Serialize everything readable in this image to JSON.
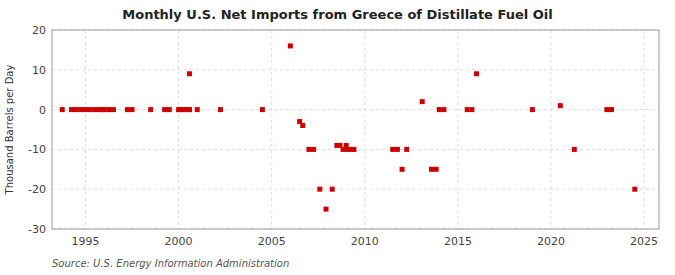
{
  "chart_data": {
    "type": "scatter",
    "title": "Monthly U.S. Net Imports from Greece of Distillate Fuel Oil",
    "y_label": "Thousand Barrels per Day",
    "source": "Source: U.S. Energy Information Administration",
    "color": "#cc0000",
    "marker": "square",
    "grid": true,
    "xlim": [
      1993.2,
      2025.8
    ],
    "ylim": [
      -30,
      20
    ],
    "xticks": [
      1995,
      2000,
      2005,
      2010,
      2015,
      2020,
      2025
    ],
    "yticks": [
      -30,
      -20,
      -10,
      0,
      10,
      20
    ],
    "x": [
      1993.75,
      1994.25,
      1994.5,
      1994.75,
      1995.0,
      1995.25,
      1995.5,
      1995.75,
      1995.917,
      1996.0,
      1996.25,
      1996.5,
      1997.25,
      1997.5,
      1998.5,
      1999.25,
      1999.5,
      2000.0,
      2000.083,
      2000.25,
      2000.417,
      2000.583,
      2000.583,
      2001.0,
      2002.25,
      2004.5,
      2006.0,
      2006.5,
      2006.667,
      2007.0,
      2007.25,
      2007.583,
      2007.917,
      2008.25,
      2008.5,
      2008.667,
      2008.833,
      2009.0,
      2009.083,
      2009.25,
      2009.417,
      2011.5,
      2011.75,
      2012.0,
      2012.25,
      2013.083,
      2013.583,
      2013.833,
      2014.0,
      2014.25,
      2015.5,
      2015.75,
      2016.0,
      2019.0,
      2020.5,
      2021.25,
      2023.0,
      2023.25,
      2024.5
    ],
    "values": [
      0,
      0,
      0,
      0,
      0,
      0,
      0,
      0,
      0,
      0,
      0,
      0,
      0,
      0,
      0,
      0,
      0,
      0,
      0,
      0,
      0,
      0,
      9,
      0,
      0,
      0,
      16,
      -3,
      -4,
      -10,
      -10,
      -20,
      -25,
      -20,
      -9,
      -9,
      -10,
      -9,
      -10,
      -10,
      -10,
      -10,
      -10,
      -15,
      -10,
      2,
      -15,
      -15,
      0,
      0,
      0,
      0,
      9,
      0,
      1,
      -10,
      0,
      0,
      -20
    ]
  }
}
